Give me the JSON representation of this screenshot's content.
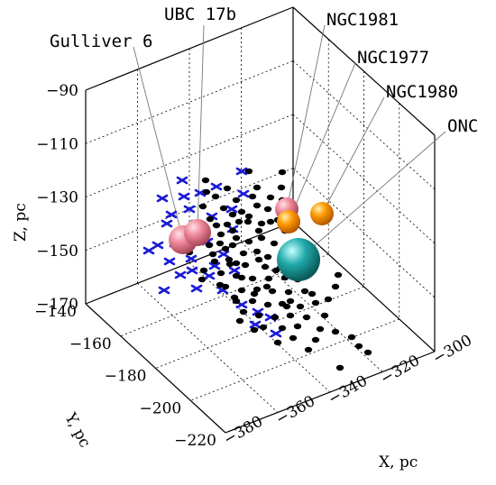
{
  "chart_data": {
    "type": "scatter3d",
    "title": "",
    "xlabel": "X, pc",
    "ylabel": "Y, pc",
    "zlabel": "Z, pc",
    "xlim": [
      -380,
      -300
    ],
    "ylim": [
      -220,
      -140
    ],
    "zlim": [
      -170,
      -90
    ],
    "x_ticks": [
      "−380",
      "−360",
      "−340",
      "−320",
      "−300"
    ],
    "y_ticks": [
      "−140",
      "−160",
      "−180",
      "−200",
      "−220"
    ],
    "z_ticks": [
      "−90",
      "−110",
      "−130",
      "−150",
      "−170"
    ],
    "grid": true,
    "clusters": [
      {
        "label": "Gulliver 6",
        "x": -361,
        "y": -160,
        "z": -152,
        "color": "#ee8899"
      },
      {
        "label": "UBC 17b",
        "x": -357,
        "y": -160,
        "z": -149,
        "color": "#ee8899"
      },
      {
        "label": "NGC1981",
        "x": -333,
        "y": -160,
        "z": -144,
        "color": "#ee8899"
      },
      {
        "label": "NGC1977",
        "x": -333,
        "y": -160,
        "z": -148,
        "color": "#ff9900"
      },
      {
        "label": "NGC1980",
        "x": -325,
        "y": -160,
        "z": -146,
        "color": "#ff9900"
      },
      {
        "label": "ONC",
        "x": -330,
        "y": -160,
        "z": -162,
        "color": "#22aaaa"
      }
    ],
    "series": [
      {
        "marker": "dot",
        "color": "#000000",
        "points": [
          [
            228,
            200
          ],
          [
            276,
            190
          ],
          [
            313,
            191
          ],
          [
            285,
            208
          ],
          [
            252,
            209
          ],
          [
            239,
            218
          ],
          [
            262,
            222
          ],
          [
            300,
            219
          ],
          [
            225,
            229
          ],
          [
            248,
            231
          ],
          [
            268,
            235
          ],
          [
            297,
            232
          ],
          [
            313,
            222
          ],
          [
            233,
            243
          ],
          [
            252,
            249
          ],
          [
            275,
            246
          ],
          [
            287,
            256
          ],
          [
            245,
            260
          ],
          [
            262,
            264
          ],
          [
            290,
            264
          ],
          [
            304,
            270
          ],
          [
            232,
            272
          ],
          [
            250,
            276
          ],
          [
            270,
            281
          ],
          [
            285,
            279
          ],
          [
            297,
            285
          ],
          [
            238,
            290
          ],
          [
            255,
            293
          ],
          [
            272,
            294
          ],
          [
            294,
            296
          ],
          [
            311,
            297
          ],
          [
            245,
            303
          ],
          [
            262,
            306
          ],
          [
            280,
            309
          ],
          [
            298,
            309
          ],
          [
            316,
            308
          ],
          [
            330,
            310
          ],
          [
            250,
            318
          ],
          [
            268,
            322
          ],
          [
            285,
            321
          ],
          [
            302,
            323
          ],
          [
            320,
            324
          ],
          [
            338,
            323
          ],
          [
            262,
            334
          ],
          [
            280,
            334
          ],
          [
            297,
            338
          ],
          [
            313,
            337
          ],
          [
            333,
            340
          ],
          [
            350,
            336
          ],
          [
            270,
            346
          ],
          [
            287,
            350
          ],
          [
            305,
            352
          ],
          [
            322,
            350
          ],
          [
            340,
            352
          ],
          [
            360,
            350
          ],
          [
            292,
            363
          ],
          [
            313,
            364
          ],
          [
            330,
            362
          ],
          [
            355,
            365
          ],
          [
            325,
            375
          ],
          [
            350,
            377
          ],
          [
            372,
            368
          ],
          [
            390,
            374
          ],
          [
            398,
            384
          ],
          [
            408,
            391
          ],
          [
            377,
            408
          ],
          [
            375,
            305
          ],
          [
            258,
            272
          ],
          [
            276,
            268
          ],
          [
            240,
            250
          ],
          [
            258,
            238
          ],
          [
            285,
            228
          ],
          [
            218,
            262
          ],
          [
            226,
            300
          ],
          [
            244,
            316
          ],
          [
            266,
            356
          ],
          [
            282,
            366
          ],
          [
            308,
            380
          ],
          [
            342,
            388
          ],
          [
            364,
            332
          ],
          [
            372,
            318
          ],
          [
            300,
            246
          ],
          [
            316,
            256
          ],
          [
            254,
            288
          ],
          [
            210,
            280
          ],
          [
            265,
            246
          ],
          [
            280,
            218
          ],
          [
            308,
            244
          ],
          [
            290,
            248
          ],
          [
            258,
            256
          ],
          [
            346,
            326
          ],
          [
            318,
            340
          ],
          [
            282,
            326
          ],
          [
            236,
            282
          ],
          [
            224,
            310
          ],
          [
            260,
            330
          ],
          [
            296,
            318
          ],
          [
            322,
            334
          ],
          [
            268,
            308
          ],
          [
            287,
            288
          ],
          [
            306,
            300
          ],
          [
            262,
            292
          ],
          [
            244,
            270
          ],
          [
            226,
            252
          ],
          [
            312,
            208
          ],
          [
            276,
            240
          ],
          [
            229,
            213
          ]
        ]
      },
      {
        "marker": "cross",
        "color": "#1a1ad6",
        "points": [
          [
            202,
            200
          ],
          [
            240,
            207
          ],
          [
            268,
            190
          ],
          [
            180,
            220
          ],
          [
            222,
            214
          ],
          [
            210,
            232
          ],
          [
            185,
            248
          ],
          [
            235,
            240
          ],
          [
            200,
            260
          ],
          [
            175,
            272
          ],
          [
            230,
            268
          ],
          [
            258,
            254
          ],
          [
            188,
            290
          ],
          [
            212,
            287
          ],
          [
            248,
            282
          ],
          [
            165,
            278
          ],
          [
            200,
            305
          ],
          [
            232,
            306
          ],
          [
            218,
            320
          ],
          [
            247,
            322
          ],
          [
            182,
            322
          ],
          [
            268,
            338
          ],
          [
            286,
            346
          ],
          [
            300,
            352
          ],
          [
            283,
            360
          ],
          [
            306,
            370
          ],
          [
            260,
            300
          ],
          [
            238,
            295
          ],
          [
            222,
            260
          ],
          [
            257,
            232
          ],
          [
            270,
            215
          ],
          [
            218,
            248
          ],
          [
            204,
            218
          ],
          [
            190,
            238
          ],
          [
            213,
            300
          ],
          [
            194,
            270
          ]
        ]
      }
    ]
  }
}
